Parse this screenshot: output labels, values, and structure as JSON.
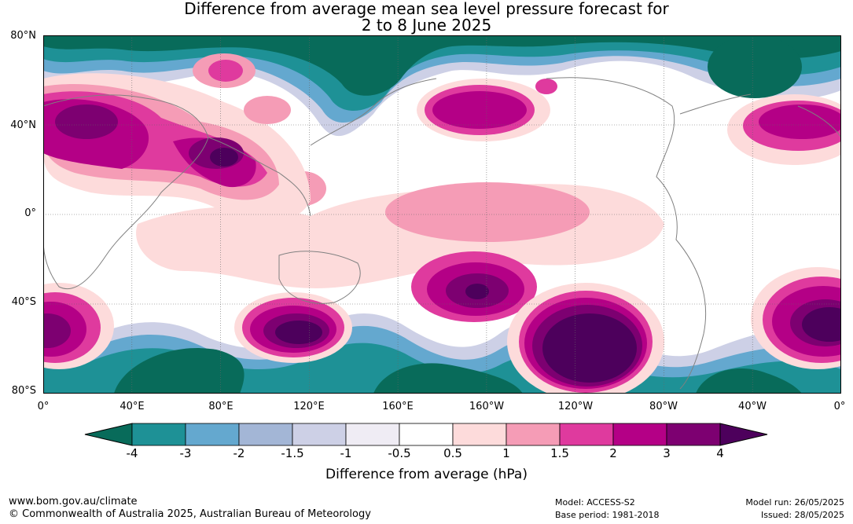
{
  "title_line1": "Difference from average mean sea level pressure forecast for",
  "title_line2": "2 to 8 June 2025",
  "y_axis_labels": [
    "80°N",
    "40°N",
    "0°",
    "40°S",
    "80°S"
  ],
  "x_axis_labels": [
    "0°",
    "40°E",
    "80°E",
    "120°E",
    "160°E",
    "160°W",
    "120°W",
    "80°W",
    "40°W",
    "0°"
  ],
  "colorbar": {
    "ticks": [
      "-4",
      "-3",
      "-2",
      "-1.5",
      "-1",
      "-0.5",
      "0.5",
      "1",
      "1.5",
      "2",
      "3",
      "4"
    ],
    "colors": [
      "#086b5a",
      "#1e9196",
      "#64a8cf",
      "#a3b6d6",
      "#cdd0e6",
      "#efecf4",
      "#ffffff",
      "#fddbdb",
      "#f59cb6",
      "#df3a9e",
      "#b40086",
      "#7d0071",
      "#4d005c"
    ],
    "title": "Difference from average (hPa)"
  },
  "footer": {
    "url": "www.bom.gov.au/climate",
    "copyright": "© Commonwealth of Australia 2025, Australian Bureau of Meteorology",
    "model": "Model: ACCESS-S2",
    "base_period": "Base period: 1981-2018",
    "model_run": "Model run: 26/05/2025",
    "issued": "Issued: 28/05/2025"
  }
}
